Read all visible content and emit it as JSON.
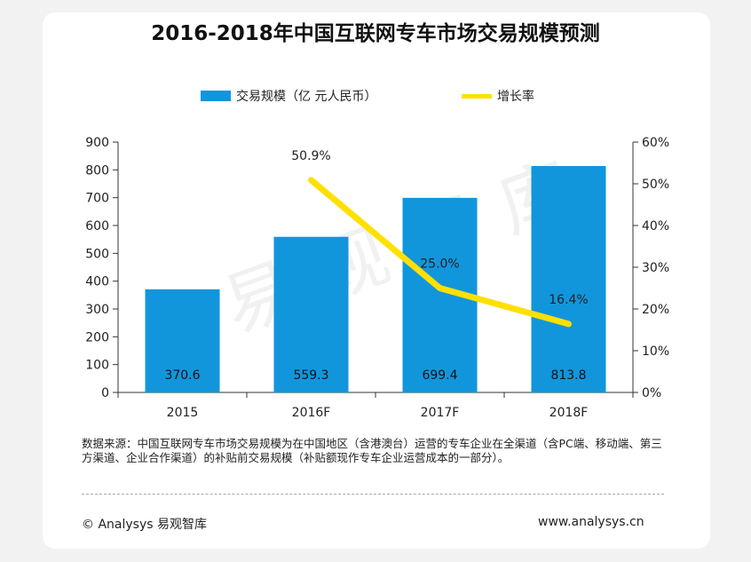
{
  "chart_data": {
    "type": "bar",
    "title": "2016-2018年中国互联网专车市场交易规模预测",
    "categories": [
      "2015",
      "2016F",
      "2017F",
      "2018F"
    ],
    "series": [
      {
        "name": "交易规模（亿 元人民币）",
        "type": "bar",
        "axis": "left",
        "values": [
          370.6,
          559.3,
          699.4,
          813.8
        ],
        "labels": [
          "370.6",
          "559.3",
          "699.4",
          "813.8"
        ],
        "color": "#1296db"
      },
      {
        "name": "增长率",
        "type": "line",
        "axis": "right",
        "values": [
          null,
          50.9,
          25.0,
          16.4
        ],
        "labels": [
          "",
          "50.9%",
          "25.0%",
          "16.4%"
        ],
        "color": "#ffe000"
      }
    ],
    "y_left": {
      "ylim": [
        0,
        900
      ],
      "ticks": [
        "0",
        "100",
        "200",
        "300",
        "400",
        "500",
        "600",
        "700",
        "800",
        "900"
      ]
    },
    "y_right": {
      "ylim": [
        0,
        60
      ],
      "ticks": [
        "0%",
        "10%",
        "20%",
        "30%",
        "40%",
        "50%",
        "60%"
      ]
    },
    "legend": "top-center",
    "grid": false
  },
  "source_note": "数据来源：中国互联网专车市场交易规模为在中国地区（含港澳台）运营的专车企业在全渠道（含PC端、移动端、第三方渠道、企业合作渠道）的补贴前交易规模（补贴额现作专车企业运营成本的一部分）。",
  "footer": {
    "copyright": "© Analysys 易观智库",
    "url": "www.analysys.cn"
  },
  "watermark": "易观智库"
}
